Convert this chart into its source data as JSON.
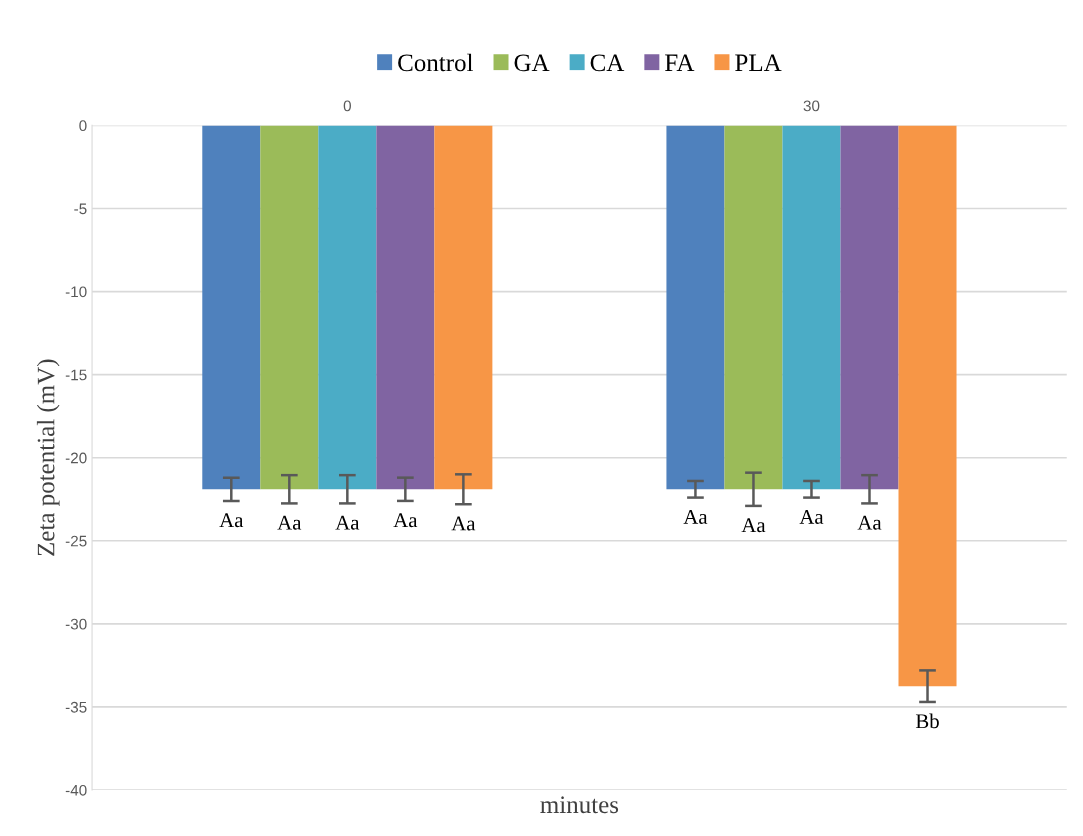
{
  "chart_data": {
    "type": "bar",
    "xlabel": "minutes",
    "ylabel": "Zeta potential (mV)",
    "categories": [
      "0",
      "30"
    ],
    "series": [
      {
        "name": "Control",
        "color": "#4f81bd",
        "values": [
          -21.9,
          -21.9
        ],
        "errors": [
          0.7,
          0.5
        ],
        "value_labels": [
          "Aa",
          "Aa"
        ]
      },
      {
        "name": "GA",
        "color": "#9bbb59",
        "values": [
          -21.9,
          -21.9
        ],
        "errors": [
          0.85,
          1.0
        ],
        "value_labels": [
          "Aa",
          "Aa"
        ]
      },
      {
        "name": "CA",
        "color": "#4bacc6",
        "values": [
          -21.9,
          -21.9
        ],
        "errors": [
          0.85,
          0.5
        ],
        "value_labels": [
          "Aa",
          "Aa"
        ]
      },
      {
        "name": "FA",
        "color": "#8064a2",
        "values": [
          -21.9,
          -21.9
        ],
        "errors": [
          0.7,
          0.85
        ],
        "value_labels": [
          "Aa",
          "Aa"
        ]
      },
      {
        "name": "PLA",
        "color": "#f79646",
        "values": [
          -21.9,
          -33.75
        ],
        "errors": [
          0.9,
          0.95
        ],
        "value_labels": [
          "Aa",
          "Bb"
        ]
      }
    ],
    "ylim": [
      -40,
      0
    ],
    "yticks": [
      -40,
      -35,
      -30,
      -25,
      -20,
      -15,
      -10,
      -5,
      0
    ],
    "grid": "y",
    "legend": "top"
  }
}
